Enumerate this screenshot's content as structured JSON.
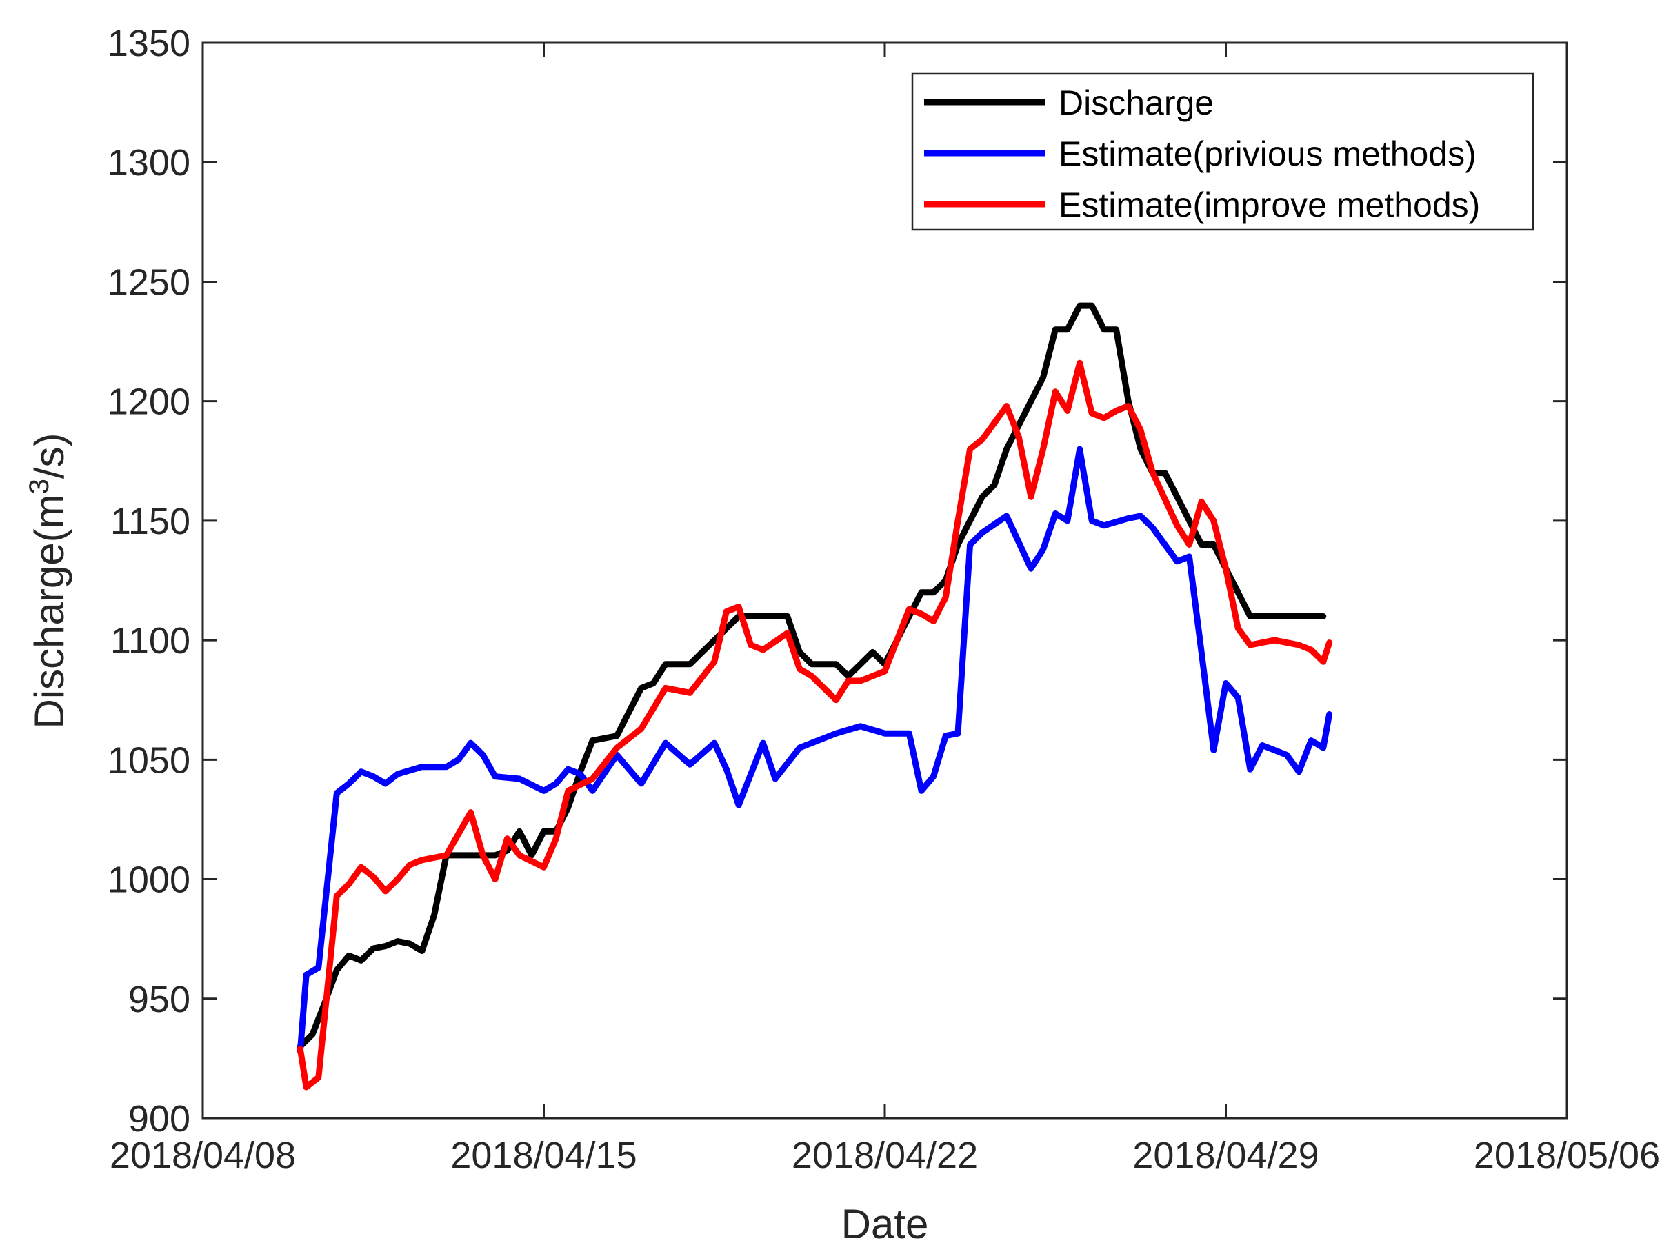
{
  "chart_data": {
    "type": "line",
    "title": "",
    "xlabel": "Date",
    "ylabel_main": "Discharge(m",
    "ylabel_sup": "3",
    "ylabel_tail": "/s)",
    "xlim": [
      "2018/04/08",
      "2018/05/06"
    ],
    "ylim": [
      900,
      1350
    ],
    "x_ticks": [
      "2018/04/08",
      "2018/04/15",
      "2018/04/22",
      "2018/04/29",
      "2018/05/06"
    ],
    "y_ticks": [
      900,
      950,
      1000,
      1050,
      1100,
      1150,
      1200,
      1250,
      1300,
      1350
    ],
    "grid": false,
    "legend_position": "top-right",
    "series": [
      {
        "name": "Discharge",
        "color": "#000000",
        "points": [
          [
            "2018/04/10 00:00",
            930
          ],
          [
            "2018/04/10 06:00",
            935
          ],
          [
            "2018/04/10 12:00",
            948
          ],
          [
            "2018/04/10 18:00",
            962
          ],
          [
            "2018/04/11 00:00",
            968
          ],
          [
            "2018/04/11 06:00",
            966
          ],
          [
            "2018/04/11 12:00",
            971
          ],
          [
            "2018/04/11 18:00",
            972
          ],
          [
            "2018/04/12 00:00",
            974
          ],
          [
            "2018/04/12 06:00",
            973
          ],
          [
            "2018/04/12 12:00",
            970
          ],
          [
            "2018/04/12 18:00",
            985
          ],
          [
            "2018/04/13 00:00",
            1010
          ],
          [
            "2018/04/13 12:00",
            1010
          ],
          [
            "2018/04/14 00:00",
            1010
          ],
          [
            "2018/04/14 06:00",
            1012
          ],
          [
            "2018/04/14 12:00",
            1020
          ],
          [
            "2018/04/14 18:00",
            1010
          ],
          [
            "2018/04/15 00:00",
            1020
          ],
          [
            "2018/04/15 06:00",
            1020
          ],
          [
            "2018/04/15 12:00",
            1030
          ],
          [
            "2018/04/15 18:00",
            1045
          ],
          [
            "2018/04/16 00:00",
            1058
          ],
          [
            "2018/04/16 12:00",
            1060
          ],
          [
            "2018/04/16 18:00",
            1070
          ],
          [
            "2018/04/17 00:00",
            1080
          ],
          [
            "2018/04/17 06:00",
            1082
          ],
          [
            "2018/04/17 12:00",
            1090
          ],
          [
            "2018/04/18 00:00",
            1090
          ],
          [
            "2018/04/18 12:00",
            1100
          ],
          [
            "2018/04/19 00:00",
            1110
          ],
          [
            "2018/04/19 12:00",
            1110
          ],
          [
            "2018/04/20 00:00",
            1110
          ],
          [
            "2018/04/20 06:00",
            1095
          ],
          [
            "2018/04/20 12:00",
            1090
          ],
          [
            "2018/04/20 18:00",
            1090
          ],
          [
            "2018/04/21 00:00",
            1090
          ],
          [
            "2018/04/21 06:00",
            1085
          ],
          [
            "2018/04/21 12:00",
            1090
          ],
          [
            "2018/04/21 18:00",
            1095
          ],
          [
            "2018/04/22 00:00",
            1090
          ],
          [
            "2018/04/22 06:00",
            1100
          ],
          [
            "2018/04/22 12:00",
            1110
          ],
          [
            "2018/04/22 18:00",
            1120
          ],
          [
            "2018/04/23 00:00",
            1120
          ],
          [
            "2018/04/23 06:00",
            1125
          ],
          [
            "2018/04/23 12:00",
            1140
          ],
          [
            "2018/04/23 18:00",
            1150
          ],
          [
            "2018/04/24 00:00",
            1160
          ],
          [
            "2018/04/24 06:00",
            1165
          ],
          [
            "2018/04/24 12:00",
            1180
          ],
          [
            "2018/04/24 18:00",
            1190
          ],
          [
            "2018/04/25 00:00",
            1200
          ],
          [
            "2018/04/25 06:00",
            1210
          ],
          [
            "2018/04/25 12:00",
            1230
          ],
          [
            "2018/04/25 18:00",
            1230
          ],
          [
            "2018/04/26 00:00",
            1240
          ],
          [
            "2018/04/26 06:00",
            1240
          ],
          [
            "2018/04/26 12:00",
            1230
          ],
          [
            "2018/04/26 18:00",
            1230
          ],
          [
            "2018/04/27 00:00",
            1200
          ],
          [
            "2018/04/27 06:00",
            1180
          ],
          [
            "2018/04/27 12:00",
            1170
          ],
          [
            "2018/04/27 18:00",
            1170
          ],
          [
            "2018/04/28 00:00",
            1160
          ],
          [
            "2018/04/28 06:00",
            1150
          ],
          [
            "2018/04/28 12:00",
            1140
          ],
          [
            "2018/04/28 18:00",
            1140
          ],
          [
            "2018/04/29 00:00",
            1130
          ],
          [
            "2018/04/29 06:00",
            1120
          ],
          [
            "2018/04/29 12:00",
            1110
          ],
          [
            "2018/04/30 00:00",
            1110
          ],
          [
            "2018/04/30 12:00",
            1110
          ],
          [
            "2018/05/01 00:00",
            1110
          ]
        ]
      },
      {
        "name": "Estimate(privious methods)",
        "color": "#0000ff",
        "points": [
          [
            "2018/04/10 00:00",
            928
          ],
          [
            "2018/04/10 03:00",
            960
          ],
          [
            "2018/04/10 09:00",
            963
          ],
          [
            "2018/04/10 18:00",
            1036
          ],
          [
            "2018/04/11 00:00",
            1040
          ],
          [
            "2018/04/11 06:00",
            1045
          ],
          [
            "2018/04/11 12:00",
            1043
          ],
          [
            "2018/04/11 18:00",
            1040
          ],
          [
            "2018/04/12 00:00",
            1044
          ],
          [
            "2018/04/12 12:00",
            1047
          ],
          [
            "2018/04/13 00:00",
            1047
          ],
          [
            "2018/04/13 06:00",
            1050
          ],
          [
            "2018/04/13 12:00",
            1057
          ],
          [
            "2018/04/13 18:00",
            1052
          ],
          [
            "2018/04/14 00:00",
            1043
          ],
          [
            "2018/04/14 12:00",
            1042
          ],
          [
            "2018/04/15 00:00",
            1037
          ],
          [
            "2018/04/15 06:00",
            1040
          ],
          [
            "2018/04/15 12:00",
            1046
          ],
          [
            "2018/04/15 18:00",
            1044
          ],
          [
            "2018/04/16 00:00",
            1037
          ],
          [
            "2018/04/16 12:00",
            1052
          ],
          [
            "2018/04/16 18:00",
            1046
          ],
          [
            "2018/04/17 00:00",
            1040
          ],
          [
            "2018/04/17 12:00",
            1057
          ],
          [
            "2018/04/18 00:00",
            1048
          ],
          [
            "2018/04/18 12:00",
            1057
          ],
          [
            "2018/04/18 18:00",
            1046
          ],
          [
            "2018/04/19 00:00",
            1031
          ],
          [
            "2018/04/19 12:00",
            1057
          ],
          [
            "2018/04/19 18:00",
            1042
          ],
          [
            "2018/04/20 06:00",
            1055
          ],
          [
            "2018/04/20 12:00",
            1057
          ],
          [
            "2018/04/21 00:00",
            1061
          ],
          [
            "2018/04/21 12:00",
            1064
          ],
          [
            "2018/04/22 00:00",
            1061
          ],
          [
            "2018/04/22 12:00",
            1061
          ],
          [
            "2018/04/22 18:00",
            1037
          ],
          [
            "2018/04/23 00:00",
            1043
          ],
          [
            "2018/04/23 06:00",
            1060
          ],
          [
            "2018/04/23 12:00",
            1061
          ],
          [
            "2018/04/23 18:00",
            1140
          ],
          [
            "2018/04/24 00:00",
            1145
          ],
          [
            "2018/04/24 12:00",
            1152
          ],
          [
            "2018/04/25 00:00",
            1130
          ],
          [
            "2018/04/25 06:00",
            1138
          ],
          [
            "2018/04/25 12:00",
            1153
          ],
          [
            "2018/04/25 18:00",
            1150
          ],
          [
            "2018/04/26 00:00",
            1180
          ],
          [
            "2018/04/26 06:00",
            1150
          ],
          [
            "2018/04/26 12:00",
            1148
          ],
          [
            "2018/04/27 00:00",
            1151
          ],
          [
            "2018/04/27 06:00",
            1152
          ],
          [
            "2018/04/27 12:00",
            1147
          ],
          [
            "2018/04/28 00:00",
            1133
          ],
          [
            "2018/04/28 06:00",
            1135
          ],
          [
            "2018/04/28 12:00",
            1095
          ],
          [
            "2018/04/28 18:00",
            1054
          ],
          [
            "2018/04/29 00:00",
            1082
          ],
          [
            "2018/04/29 06:00",
            1076
          ],
          [
            "2018/04/29 12:00",
            1046
          ],
          [
            "2018/04/29 18:00",
            1056
          ],
          [
            "2018/04/30 06:00",
            1052
          ],
          [
            "2018/04/30 12:00",
            1045
          ],
          [
            "2018/04/30 18:00",
            1058
          ],
          [
            "2018/05/01 00:00",
            1055
          ],
          [
            "2018/05/01 03:00",
            1069
          ]
        ]
      },
      {
        "name": "Estimate(improve methods)",
        "color": "#ff0000",
        "points": [
          [
            "2018/04/10 00:00",
            929
          ],
          [
            "2018/04/10 03:00",
            913
          ],
          [
            "2018/04/10 09:00",
            917
          ],
          [
            "2018/04/10 18:00",
            993
          ],
          [
            "2018/04/11 00:00",
            998
          ],
          [
            "2018/04/11 06:00",
            1005
          ],
          [
            "2018/04/11 12:00",
            1001
          ],
          [
            "2018/04/11 18:00",
            995
          ],
          [
            "2018/04/12 00:00",
            1000
          ],
          [
            "2018/04/12 06:00",
            1006
          ],
          [
            "2018/04/12 12:00",
            1008
          ],
          [
            "2018/04/13 00:00",
            1010
          ],
          [
            "2018/04/13 12:00",
            1028
          ],
          [
            "2018/04/13 18:00",
            1010
          ],
          [
            "2018/04/14 00:00",
            1000
          ],
          [
            "2018/04/14 06:00",
            1017
          ],
          [
            "2018/04/14 12:00",
            1010
          ],
          [
            "2018/04/15 00:00",
            1005
          ],
          [
            "2018/04/15 06:00",
            1017
          ],
          [
            "2018/04/15 12:00",
            1037
          ],
          [
            "2018/04/16 00:00",
            1042
          ],
          [
            "2018/04/16 12:00",
            1055
          ],
          [
            "2018/04/17 00:00",
            1063
          ],
          [
            "2018/04/17 12:00",
            1080
          ],
          [
            "2018/04/18 00:00",
            1078
          ],
          [
            "2018/04/18 12:00",
            1091
          ],
          [
            "2018/04/18 18:00",
            1112
          ],
          [
            "2018/04/19 00:00",
            1114
          ],
          [
            "2018/04/19 06:00",
            1098
          ],
          [
            "2018/04/19 12:00",
            1096
          ],
          [
            "2018/04/20 00:00",
            1103
          ],
          [
            "2018/04/20 06:00",
            1088
          ],
          [
            "2018/04/20 12:00",
            1085
          ],
          [
            "2018/04/21 00:00",
            1075
          ],
          [
            "2018/04/21 06:00",
            1083
          ],
          [
            "2018/04/21 12:00",
            1083
          ],
          [
            "2018/04/22 00:00",
            1087
          ],
          [
            "2018/04/22 12:00",
            1113
          ],
          [
            "2018/04/22 18:00",
            1111
          ],
          [
            "2018/04/23 00:00",
            1108
          ],
          [
            "2018/04/23 06:00",
            1118
          ],
          [
            "2018/04/23 12:00",
            1150
          ],
          [
            "2018/04/23 18:00",
            1180
          ],
          [
            "2018/04/24 00:00",
            1184
          ],
          [
            "2018/04/24 12:00",
            1198
          ],
          [
            "2018/04/24 18:00",
            1185
          ],
          [
            "2018/04/25 00:00",
            1160
          ],
          [
            "2018/04/25 06:00",
            1180
          ],
          [
            "2018/04/25 12:00",
            1204
          ],
          [
            "2018/04/25 18:00",
            1196
          ],
          [
            "2018/04/26 00:00",
            1216
          ],
          [
            "2018/04/26 06:00",
            1195
          ],
          [
            "2018/04/26 12:00",
            1193
          ],
          [
            "2018/04/26 18:00",
            1196
          ],
          [
            "2018/04/27 00:00",
            1198
          ],
          [
            "2018/04/27 06:00",
            1188
          ],
          [
            "2018/04/27 12:00",
            1170
          ],
          [
            "2018/04/28 00:00",
            1148
          ],
          [
            "2018/04/28 06:00",
            1140
          ],
          [
            "2018/04/28 12:00",
            1158
          ],
          [
            "2018/04/28 18:00",
            1150
          ],
          [
            "2018/04/29 00:00",
            1130
          ],
          [
            "2018/04/29 06:00",
            1105
          ],
          [
            "2018/04/29 12:00",
            1098
          ],
          [
            "2018/04/30 00:00",
            1100
          ],
          [
            "2018/04/30 12:00",
            1098
          ],
          [
            "2018/04/30 18:00",
            1096
          ],
          [
            "2018/05/01 00:00",
            1091
          ],
          [
            "2018/05/01 03:00",
            1099
          ]
        ]
      }
    ]
  }
}
